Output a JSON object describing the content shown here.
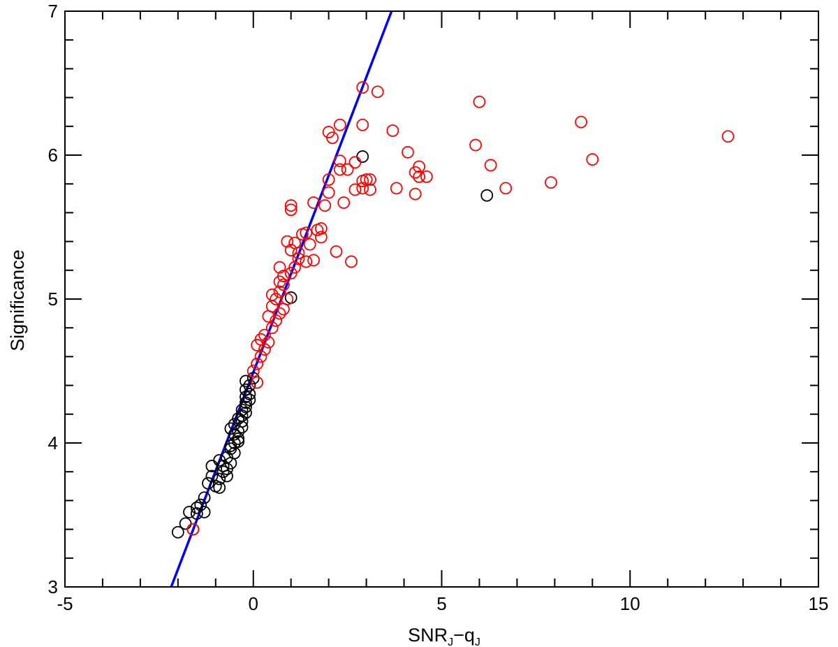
{
  "chart_data": {
    "type": "scatter",
    "title": "",
    "xlabel": {
      "main": "SNR",
      "sub1": "J",
      "mid": "−q",
      "sub2": "J"
    },
    "ylabel": "Significance",
    "xlim": [
      -5,
      15
    ],
    "ylim": [
      3,
      7
    ],
    "x_ticks": [
      -5,
      0,
      5,
      10,
      15
    ],
    "y_ticks": [
      3,
      4,
      5,
      6,
      7
    ],
    "x_minor_step": 1,
    "y_minor_step": 0.2,
    "grid": false,
    "legend": "none",
    "colors": {
      "black_points": "#000000",
      "red_points": "#ff0000",
      "fit_line": "#0000ff"
    },
    "fit_line": {
      "x": [
        -2.18,
        3.67
      ],
      "y": [
        3.0,
        7.0
      ]
    },
    "series": [
      {
        "color": "black",
        "points": [
          [
            -2.0,
            3.38
          ],
          [
            -1.8,
            3.44
          ],
          [
            -1.6,
            3.4
          ],
          [
            -1.7,
            3.52
          ],
          [
            -1.5,
            3.51
          ],
          [
            -1.3,
            3.52
          ],
          [
            -1.4,
            3.57
          ],
          [
            -1.3,
            3.62
          ],
          [
            -1.2,
            3.72
          ],
          [
            -1.0,
            3.7
          ],
          [
            -0.9,
            3.69
          ],
          [
            -1.1,
            3.77
          ],
          [
            -0.9,
            3.75
          ],
          [
            -0.8,
            3.8
          ],
          [
            -0.7,
            3.77
          ],
          [
            -0.8,
            3.84
          ],
          [
            -1.1,
            3.84
          ],
          [
            -0.6,
            3.86
          ],
          [
            -0.9,
            3.88
          ],
          [
            -0.7,
            3.9
          ],
          [
            -0.5,
            3.93
          ],
          [
            -0.6,
            3.96
          ],
          [
            -0.6,
            3.98
          ],
          [
            -0.5,
            4.0
          ],
          [
            -0.4,
            4.01
          ],
          [
            -0.4,
            4.03
          ],
          [
            -0.5,
            4.06
          ],
          [
            -0.4,
            4.08
          ],
          [
            -0.6,
            4.1
          ],
          [
            -0.3,
            4.11
          ],
          [
            -0.5,
            4.13
          ],
          [
            -0.3,
            4.15
          ],
          [
            -0.4,
            4.17
          ],
          [
            -0.3,
            4.19
          ],
          [
            -0.2,
            4.21
          ],
          [
            -0.3,
            4.23
          ],
          [
            -0.2,
            4.25
          ],
          [
            -0.2,
            4.28
          ],
          [
            -0.1,
            4.3
          ],
          [
            -0.2,
            4.32
          ],
          [
            -0.1,
            4.34
          ],
          [
            -0.2,
            4.37
          ],
          [
            -0.1,
            4.4
          ],
          [
            -0.2,
            4.43
          ],
          [
            0.0,
            4.45
          ],
          [
            -1.5,
            3.55
          ],
          [
            -0.7,
            3.82
          ],
          [
            1.0,
            5.01
          ],
          [
            2.9,
            5.99
          ],
          [
            6.2,
            5.72
          ]
        ]
      },
      {
        "color": "red",
        "points": [
          [
            -1.6,
            3.4
          ],
          [
            0.0,
            4.5
          ],
          [
            0.1,
            4.42
          ],
          [
            0.1,
            4.55
          ],
          [
            0.2,
            4.6
          ],
          [
            0.1,
            4.68
          ],
          [
            0.3,
            4.65
          ],
          [
            0.2,
            4.72
          ],
          [
            0.4,
            4.7
          ],
          [
            0.3,
            4.75
          ],
          [
            0.5,
            4.8
          ],
          [
            0.4,
            4.88
          ],
          [
            0.6,
            4.85
          ],
          [
            0.7,
            4.9
          ],
          [
            0.5,
            4.95
          ],
          [
            0.8,
            4.93
          ],
          [
            0.6,
            5.0
          ],
          [
            0.9,
            5.0
          ],
          [
            0.5,
            5.03
          ],
          [
            0.7,
            5.05
          ],
          [
            0.8,
            5.1
          ],
          [
            1.0,
            5.18
          ],
          [
            0.7,
            5.12
          ],
          [
            0.8,
            5.16
          ],
          [
            0.7,
            5.22
          ],
          [
            1.1,
            5.22
          ],
          [
            1.2,
            5.28
          ],
          [
            1.2,
            5.32
          ],
          [
            1.0,
            5.34
          ],
          [
            1.1,
            5.39
          ],
          [
            0.9,
            5.4
          ],
          [
            1.4,
            5.26
          ],
          [
            1.5,
            5.38
          ],
          [
            1.3,
            5.45
          ],
          [
            1.4,
            5.46
          ],
          [
            1.7,
            5.48
          ],
          [
            1.8,
            5.49
          ],
          [
            1.8,
            5.43
          ],
          [
            1.6,
            5.27
          ],
          [
            1.0,
            5.62
          ],
          [
            1.0,
            5.65
          ],
          [
            1.6,
            5.67
          ],
          [
            1.9,
            5.65
          ],
          [
            2.0,
            5.74
          ],
          [
            2.0,
            5.83
          ],
          [
            2.4,
            5.67
          ],
          [
            2.2,
            5.33
          ],
          [
            2.6,
            5.26
          ],
          [
            2.5,
            5.9
          ],
          [
            2.3,
            5.96
          ],
          [
            2.3,
            5.9
          ],
          [
            2.7,
            5.95
          ],
          [
            2.9,
            5.77
          ],
          [
            2.7,
            5.76
          ],
          [
            2.9,
            5.82
          ],
          [
            3.0,
            5.83
          ],
          [
            3.1,
            5.83
          ],
          [
            3.1,
            5.76
          ],
          [
            3.8,
            5.77
          ],
          [
            4.1,
            6.02
          ],
          [
            4.3,
            5.73
          ],
          [
            4.3,
            5.88
          ],
          [
            4.4,
            5.92
          ],
          [
            4.4,
            5.85
          ],
          [
            4.6,
            5.85
          ],
          [
            2.0,
            6.16
          ],
          [
            2.1,
            6.12
          ],
          [
            2.3,
            6.21
          ],
          [
            2.9,
            6.21
          ],
          [
            3.7,
            6.17
          ],
          [
            2.9,
            6.47
          ],
          [
            3.3,
            6.44
          ],
          [
            5.9,
            6.07
          ],
          [
            6.0,
            6.37
          ],
          [
            6.3,
            5.93
          ],
          [
            6.7,
            5.77
          ],
          [
            7.9,
            5.81
          ],
          [
            8.7,
            6.23
          ],
          [
            9.0,
            5.97
          ],
          [
            12.6,
            6.13
          ]
        ]
      }
    ]
  }
}
